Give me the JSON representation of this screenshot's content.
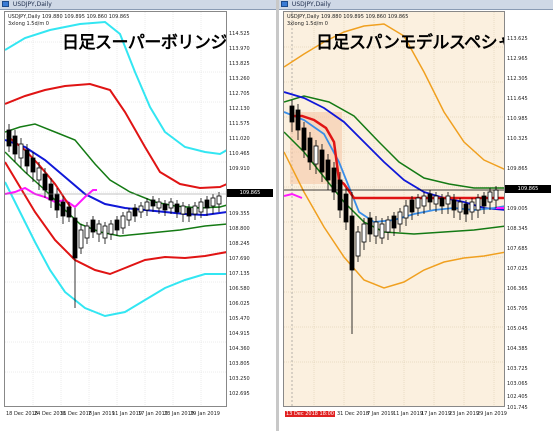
{
  "left_window": {
    "title": "USDJPY,Daily",
    "info_ohlc": "USDJPY,Daily  109.880 109.895 109.860 109.865",
    "info_indicator": "3xlong  1.5d/m  0",
    "overlay_title": "日足スーパーボリンジャー",
    "y_ticks": [
      "114.525",
      "113.970",
      "113.825",
      "113.260",
      "112.705",
      "112.130",
      "111.575",
      "111.020",
      "110.465",
      "109.910",
      "109.355",
      "108.800",
      "108.245",
      "107.690",
      "107.135",
      "106.580",
      "106.025",
      "105.470",
      "104.915",
      "104.360",
      "103.805",
      "103.250",
      "102.695",
      "102.140",
      "101.585",
      "101.030"
    ],
    "price_tag": "109.865",
    "x_ticks": [
      "18 Dec 2018",
      "24 Dec 2018",
      "31 Dec 2018",
      "7 Jan 2019",
      "11 Jan 2019",
      "17 Jan 2019",
      "23 Jan 2019",
      "29 Jan 2019",
      "4 Feb 2019"
    ]
  },
  "right_window": {
    "title": "USDJPY,Daily",
    "info_ohlc": "USDJPY,Daily  109.880 109.895 109.860 109.865",
    "info_indicator": "3xlong  1.5d/m  0",
    "overlay_title": "日足スパンモデルスペシャル",
    "y_ticks": [
      "113.625",
      "112.965",
      "112.305",
      "111.645",
      "110.985",
      "110.325",
      "109.865",
      "109.005",
      "108.345",
      "107.685",
      "107.025",
      "106.365",
      "105.705",
      "105.045",
      "104.385",
      "103.725",
      "103.065",
      "102.405",
      "101.745"
    ],
    "price_tag": "109.865",
    "x_ticks": [
      "13 Dec 2018",
      "31 Dec 2018",
      "7 Jan 2019",
      "11 Jan 2019",
      "17 Jan 2019",
      "23 Jan 2019",
      "29 Jan 2019",
      "4 Feb 2019"
    ],
    "x_tick_marker": "13 Dec 2018 18:00"
  },
  "colors": {
    "title_bar": "#cfd8e6",
    "cyan_band": "#33e6f2",
    "red_band": "#e01414",
    "green_band": "#147a14",
    "blue_mid": "#1018d8",
    "magenta_lag": "#ff18ff",
    "orange_band": "#f0a020",
    "span_fill": "#fbf0df"
  }
}
